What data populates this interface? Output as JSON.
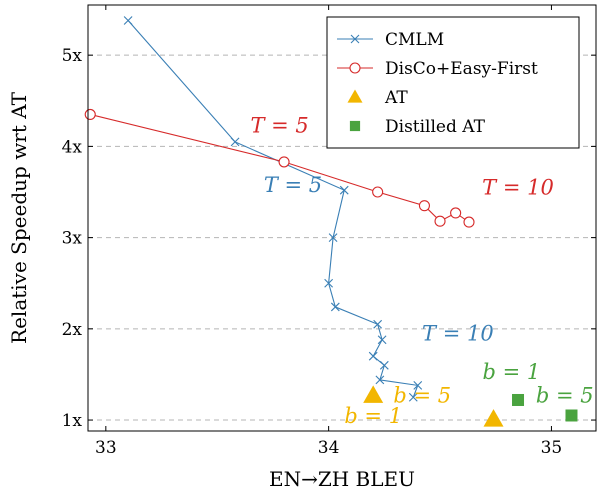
{
  "chart_data": {
    "type": "line",
    "xlabel": "EN→ZH BLEU",
    "ylabel": "Relative Speedup wrt AT",
    "xlim": [
      32.92,
      35.2
    ],
    "ylim": [
      0.88,
      5.55
    ],
    "x_ticks": [
      33,
      34,
      35
    ],
    "x_tick_labels": [
      "33",
      "34",
      "35"
    ],
    "y_ticks": [
      1,
      2,
      3,
      4,
      5
    ],
    "y_tick_labels": [
      "1x",
      "2x",
      "3x",
      "4x",
      "5x"
    ],
    "grid": "horizontal dashed",
    "legend_position": "top-right",
    "series": [
      {
        "name": "CMLM",
        "color": "#3a7fb5",
        "marker": "x",
        "points": [
          [
            33.1,
            5.38
          ],
          [
            33.58,
            4.05
          ],
          [
            34.07,
            3.52
          ],
          [
            34.02,
            3.0
          ],
          [
            34.0,
            2.5
          ],
          [
            34.03,
            2.24
          ],
          [
            34.22,
            2.05
          ],
          [
            34.24,
            1.88
          ],
          [
            34.2,
            1.7
          ],
          [
            34.25,
            1.6
          ],
          [
            34.23,
            1.44
          ],
          [
            34.4,
            1.38
          ],
          [
            34.38,
            1.25
          ]
        ]
      },
      {
        "name": "DisCo+Easy-First",
        "color": "#d62a2a",
        "marker": "o",
        "points": [
          [
            32.93,
            4.35
          ],
          [
            33.8,
            3.83
          ],
          [
            34.22,
            3.5
          ],
          [
            34.43,
            3.35
          ],
          [
            34.5,
            3.18
          ],
          [
            34.57,
            3.27
          ],
          [
            34.63,
            3.17
          ]
        ]
      },
      {
        "name": "AT",
        "color": "#f2b600",
        "marker": "triangle",
        "points": [
          [
            34.2,
            1.27
          ],
          [
            34.74,
            1.01
          ]
        ]
      },
      {
        "name": "Distilled AT",
        "color": "#4aa33f",
        "marker": "square",
        "points": [
          [
            34.85,
            1.22
          ],
          [
            35.09,
            1.05
          ]
        ]
      }
    ],
    "annotations": [
      {
        "text": "T = 5",
        "color": "#d62a2a",
        "x": 33.78,
        "y": 4.15
      },
      {
        "text": "T = 10",
        "color": "#d62a2a",
        "x": 34.85,
        "y": 3.47
      },
      {
        "text": "T = 5",
        "color": "#3a7fb5",
        "x": 33.84,
        "y": 3.5
      },
      {
        "text": "T = 10",
        "color": "#3a7fb5",
        "x": 34.58,
        "y": 1.87
      },
      {
        "text": "b = 1",
        "color": "#4aa33f",
        "x": 34.82,
        "y": 1.45
      },
      {
        "text": "b = 5",
        "color": "#f2b600",
        "x": 34.42,
        "y": 1.19
      },
      {
        "text": "b = 5",
        "color": "#4aa33f",
        "x": 35.06,
        "y": 1.19
      },
      {
        "text": "b = 1",
        "color": "#f2b600",
        "x": 34.2,
        "y": 0.97
      }
    ],
    "legend": [
      {
        "label": "CMLM",
        "series": 0
      },
      {
        "label": "DisCo+Easy-First",
        "series": 1
      },
      {
        "label": "AT",
        "series": 2
      },
      {
        "label": "Distilled AT",
        "series": 3
      }
    ]
  }
}
